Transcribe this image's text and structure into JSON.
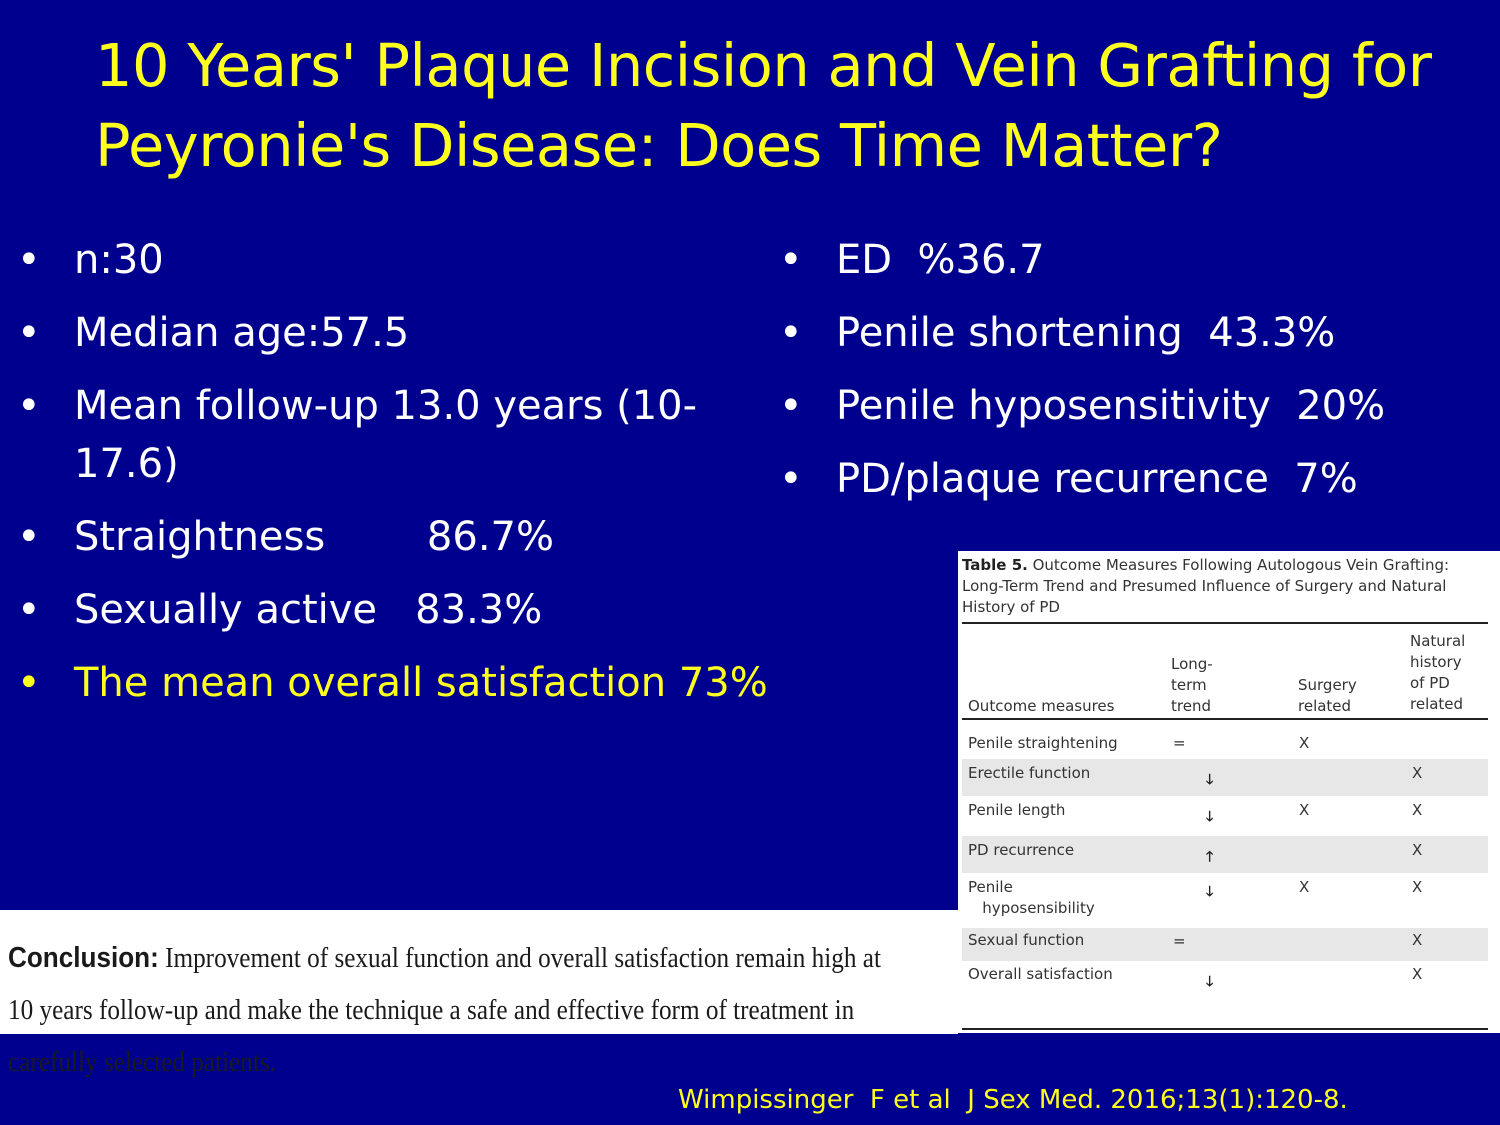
{
  "slide": {
    "title_line1": "10 Years' Plaque Incision and Vein Grafting for",
    "title_line2": "Peyronie's Disease: Does Time Matter?",
    "bullet_glyph": "•",
    "text_color": "#ffffff",
    "highlight_color": "#ffff1e",
    "background_color": "#00008f"
  },
  "left_bullets": [
    "n:30",
    "Median age:57.5",
    "Mean follow-up 13.0 years (10-\n17.6)",
    "Straightness        86.7%",
    "Sexually active   83.3%",
    "The mean overall satisfaction 73%"
  ],
  "right_bullets": [
    "ED  %36.7",
    "Penile shortening  43.3%",
    "Penile hyposensitivity  20%",
    "PD/plaque recurrence  7%"
  ],
  "table": {
    "caption_label": "Table 5.",
    "caption_text": " Outcome Measures Following Autologous Vein Grafting: Long-Term Trend and Presumed Influence of Surgery and Natural History of PD",
    "headers": {
      "outcome": "Outcome measures",
      "trend": "Long-\nterm\ntrend",
      "surgery": "Surgery\nrelated",
      "natural": "Natural\nhistory\nof PD\nrelated"
    },
    "rows": [
      {
        "measure": "Penile straightening",
        "trend": "=",
        "surgery": "X",
        "natural": ""
      },
      {
        "measure": "Erectile function",
        "trend": "🡓",
        "surgery": "",
        "natural": "X"
      },
      {
        "measure": "Penile length",
        "trend": "🡓",
        "surgery": "X",
        "natural": "X"
      },
      {
        "measure": "PD recurrence",
        "trend": "🡑",
        "surgery": "",
        "natural": "X"
      },
      {
        "measure": "Penile\n   hyposensibility",
        "trend": "🡓",
        "surgery": "X",
        "natural": "X"
      },
      {
        "measure": "Sexual function",
        "trend": "=",
        "surgery": "",
        "natural": "X"
      },
      {
        "measure": "Overall satisfaction",
        "trend": "🡓",
        "surgery": "",
        "natural": "X"
      }
    ]
  },
  "conclusion": {
    "lead": "Conclusion:",
    "text": " Improvement of sexual function and overall satisfaction remain high at 10 years follow-up and make the technique a safe and effective form of treatment in carefully selected patients."
  },
  "citation": "Wimpissinger  F et al  J Sex Med. 2016;13(1):120-8."
}
